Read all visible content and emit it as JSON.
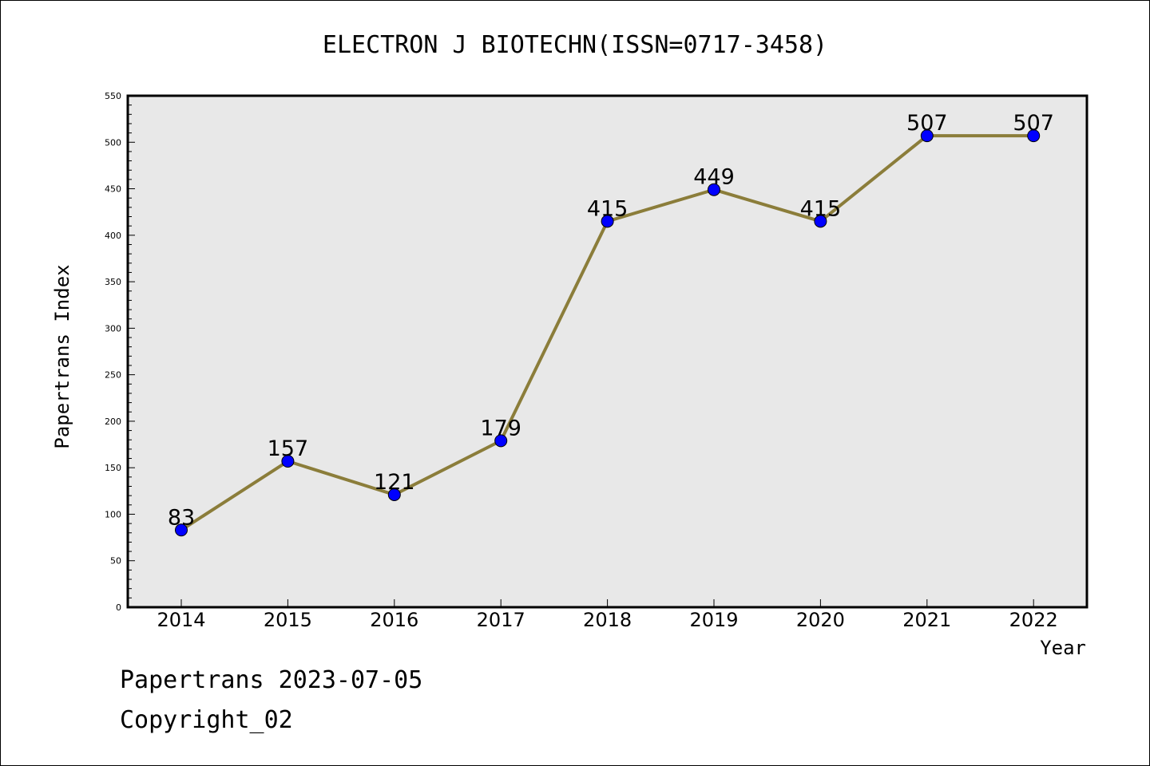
{
  "chart_data": {
    "type": "line",
    "title": "ELECTRON J BIOTECHN(ISSN=0717-3458)",
    "xlabel": "Year",
    "ylabel": "Papertrans Index",
    "categories": [
      "2014",
      "2015",
      "2016",
      "2017",
      "2018",
      "2019",
      "2020",
      "2021",
      "2022"
    ],
    "values": [
      83,
      157,
      121,
      179,
      415,
      449,
      415,
      507,
      507
    ],
    "ylim": [
      0,
      550
    ],
    "yticks": [
      0,
      50,
      100,
      150,
      200,
      250,
      300,
      350,
      400,
      450,
      500,
      550
    ],
    "grid": false,
    "line_color": "#8b7d3a",
    "marker_color": "#0000ff",
    "plot_background": "#e8e8e8"
  },
  "footer": {
    "date_line": "Papertrans 2023-07-05",
    "copyright": "Copyright_02"
  }
}
